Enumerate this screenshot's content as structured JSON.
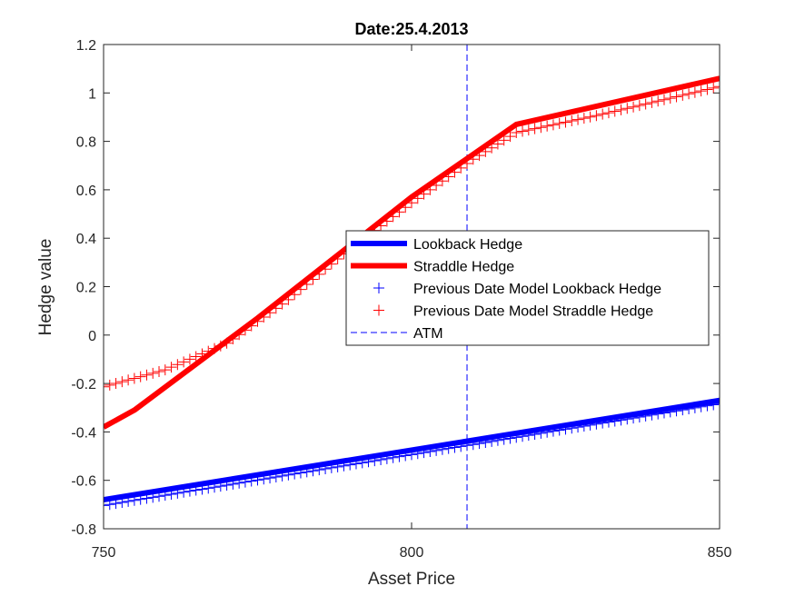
{
  "chart_data": {
    "type": "line",
    "title": "Date:25.4.2013",
    "xlabel": "Asset Price",
    "ylabel": "Hedge value",
    "xlim": [
      750,
      850
    ],
    "ylim": [
      -0.8,
      1.2
    ],
    "xticks": [
      "750",
      "800",
      "850"
    ],
    "yticks": [
      "-0.8",
      "-0.6",
      "-0.4",
      "-0.2",
      "0",
      "0.2",
      "0.4",
      "0.6",
      "0.8",
      "1",
      "1.2"
    ],
    "grid": false,
    "legend_position": "center-right",
    "atm": 809,
    "series": [
      {
        "name": "Lookback Hedge",
        "style": "line",
        "color": "#0000ff",
        "x": [
          750,
          850
        ],
        "y": [
          -0.68,
          -0.27
        ]
      },
      {
        "name": "Straddle Hedge",
        "style": "line",
        "color": "#ff0000",
        "x": [
          750,
          755,
          775,
          800,
          817,
          850
        ],
        "y": [
          -0.38,
          -0.31,
          0.07,
          0.57,
          0.87,
          1.06
        ]
      },
      {
        "name": "Previous Date Model Lookback Hedge",
        "style": "markers",
        "marker": "+",
        "color": "#0000ff",
        "x": [
          750,
          850
        ],
        "y": [
          -0.7,
          -0.28
        ]
      },
      {
        "name": "Previous Date Model Straddle Hedge",
        "style": "markers",
        "marker": "+",
        "color": "#ff0000",
        "x": [
          750,
          760,
          770,
          780,
          790,
          800,
          810,
          817,
          830,
          840,
          850
        ],
        "y": [
          -0.21,
          -0.14,
          -0.03,
          0.15,
          0.36,
          0.55,
          0.73,
          0.84,
          0.91,
          0.97,
          1.03
        ]
      },
      {
        "name": "ATM",
        "style": "vline",
        "color": "#0000ff"
      }
    ]
  }
}
